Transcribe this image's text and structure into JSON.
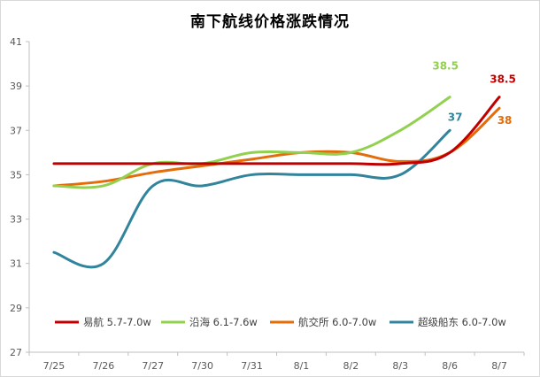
{
  "chart_data": {
    "type": "line",
    "title": "南下航线价格涨跌情况",
    "categories": [
      "7/25",
      "7/26",
      "7/27",
      "7/30",
      "7/31",
      "8/1",
      "8/2",
      "8/3",
      "8/6",
      "8/7"
    ],
    "ylim": [
      27,
      41
    ],
    "yticks": [
      27,
      29,
      31,
      33,
      35,
      37,
      39,
      41
    ],
    "grid": false,
    "legend_position": "bottom-inside",
    "series": [
      {
        "name": "易航 5.7-7.0w",
        "color": "#c00000",
        "values": [
          35.5,
          35.5,
          35.5,
          35.5,
          35.5,
          35.5,
          35.5,
          35.5,
          36.0,
          38.5
        ],
        "end_label": "38.5"
      },
      {
        "name": "沿海 6.1-7.6w",
        "color": "#92d050",
        "values": [
          34.5,
          34.5,
          35.5,
          35.5,
          36.0,
          36.0,
          36.0,
          37.0,
          38.5,
          null
        ],
        "end_label": "38.5"
      },
      {
        "name": "航交所 6.0-7.0w",
        "color": "#e46c0a",
        "values": [
          34.5,
          34.7,
          35.1,
          35.4,
          35.7,
          36.0,
          36.0,
          35.6,
          36.0,
          38.0
        ],
        "end_label": "38"
      },
      {
        "name": "超级船东 6.0-7.0w",
        "color": "#31849b",
        "values": [
          31.5,
          31.0,
          34.5,
          34.5,
          35.0,
          35.0,
          35.0,
          35.0,
          37.0,
          null
        ],
        "end_label": "37"
      }
    ]
  }
}
